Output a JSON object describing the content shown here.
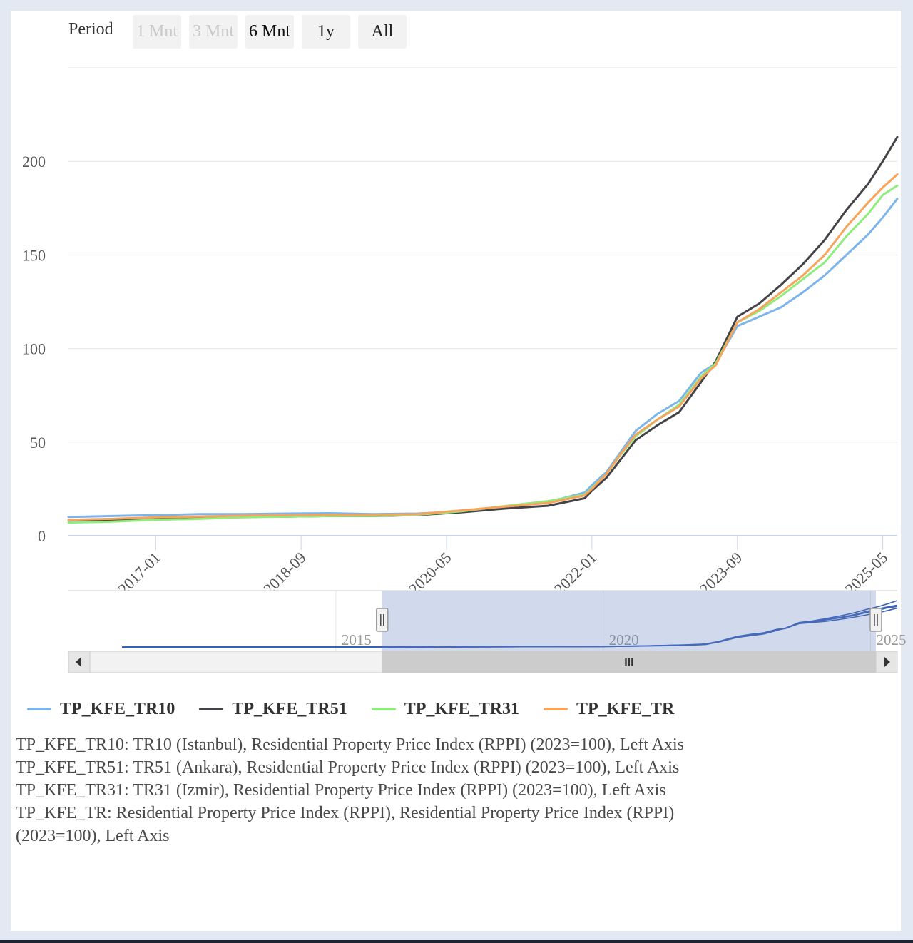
{
  "range_selector": {
    "label": "Period",
    "buttons": [
      {
        "label": "1 Mnt",
        "state": "disabled"
      },
      {
        "label": "3 Mnt",
        "state": "disabled"
      },
      {
        "label": "6 Mnt",
        "state": "selected"
      },
      {
        "label": "1y",
        "state": "normal"
      },
      {
        "label": "All",
        "state": "normal"
      }
    ]
  },
  "chart_data": {
    "type": "line",
    "xlabel": "",
    "ylabel": "",
    "y_ticks": [
      "0",
      "50",
      "100",
      "150",
      "200"
    ],
    "ylim": [
      0,
      250
    ],
    "x_ticks": [
      "2017-01",
      "2018-09",
      "2020-05",
      "2022-01",
      "2023-09",
      "2025-05"
    ],
    "xlim": [
      "2016-01",
      "2025-07"
    ],
    "grid": true,
    "legend_position": "bottom",
    "series": [
      {
        "name": "TP_KFE_TR10",
        "color": "#7cb5ec",
        "points": [
          [
            "2016-01",
            10
          ],
          [
            "2016-07",
            10.5
          ],
          [
            "2017-01",
            11
          ],
          [
            "2017-07",
            11.5
          ],
          [
            "2018-01",
            11.5
          ],
          [
            "2018-07",
            11.8
          ],
          [
            "2019-01",
            12
          ],
          [
            "2019-07",
            11.5
          ],
          [
            "2020-01",
            11.8
          ],
          [
            "2020-07",
            13
          ],
          [
            "2021-01",
            15.5
          ],
          [
            "2021-07",
            18
          ],
          [
            "2021-12",
            23
          ],
          [
            "2022-01",
            27
          ],
          [
            "2022-03",
            34
          ],
          [
            "2022-05",
            45
          ],
          [
            "2022-07",
            56
          ],
          [
            "2022-10",
            65
          ],
          [
            "2023-01",
            72
          ],
          [
            "2023-04",
            87
          ],
          [
            "2023-06",
            92
          ],
          [
            "2023-09",
            112
          ],
          [
            "2023-12",
            117
          ],
          [
            "2024-03",
            122
          ],
          [
            "2024-06",
            130
          ],
          [
            "2024-09",
            139
          ],
          [
            "2024-12",
            150
          ],
          [
            "2025-03",
            161
          ],
          [
            "2025-05",
            170
          ],
          [
            "2025-07",
            180
          ]
        ]
      },
      {
        "name": "TP_KFE_TR51",
        "color": "#434348",
        "points": [
          [
            "2016-01",
            8
          ],
          [
            "2016-07",
            8.5
          ],
          [
            "2017-01",
            9
          ],
          [
            "2017-07",
            9.5
          ],
          [
            "2018-01",
            10
          ],
          [
            "2018-07",
            10.2
          ],
          [
            "2019-01",
            10.5
          ],
          [
            "2019-07",
            10.5
          ],
          [
            "2020-01",
            11
          ],
          [
            "2020-07",
            12.5
          ],
          [
            "2021-01",
            14.5
          ],
          [
            "2021-07",
            16
          ],
          [
            "2021-12",
            20
          ],
          [
            "2022-01",
            24
          ],
          [
            "2022-03",
            31
          ],
          [
            "2022-05",
            41
          ],
          [
            "2022-07",
            51
          ],
          [
            "2022-10",
            59
          ],
          [
            "2023-01",
            66
          ],
          [
            "2023-04",
            82
          ],
          [
            "2023-06",
            93
          ],
          [
            "2023-09",
            117
          ],
          [
            "2023-12",
            124
          ],
          [
            "2024-03",
            134
          ],
          [
            "2024-06",
            145
          ],
          [
            "2024-09",
            158
          ],
          [
            "2024-12",
            174
          ],
          [
            "2025-03",
            188
          ],
          [
            "2025-05",
            200
          ],
          [
            "2025-07",
            213
          ]
        ]
      },
      {
        "name": "TP_KFE_TR31",
        "color": "#90ed7d",
        "points": [
          [
            "2016-01",
            7
          ],
          [
            "2016-07",
            7.5
          ],
          [
            "2017-01",
            8.5
          ],
          [
            "2017-07",
            9
          ],
          [
            "2018-01",
            9.8
          ],
          [
            "2018-07",
            10.2
          ],
          [
            "2019-01",
            10.5
          ],
          [
            "2019-07",
            10.6
          ],
          [
            "2020-01",
            11.2
          ],
          [
            "2020-07",
            13
          ],
          [
            "2021-01",
            15.8
          ],
          [
            "2021-07",
            18.5
          ],
          [
            "2021-12",
            22
          ],
          [
            "2022-01",
            25.5
          ],
          [
            "2022-03",
            33
          ],
          [
            "2022-05",
            43.5
          ],
          [
            "2022-07",
            53
          ],
          [
            "2022-10",
            62
          ],
          [
            "2023-01",
            70
          ],
          [
            "2023-04",
            85
          ],
          [
            "2023-06",
            92
          ],
          [
            "2023-09",
            114
          ],
          [
            "2023-12",
            120
          ],
          [
            "2024-03",
            128
          ],
          [
            "2024-06",
            137
          ],
          [
            "2024-09",
            146
          ],
          [
            "2024-12",
            160
          ],
          [
            "2025-03",
            172
          ],
          [
            "2025-05",
            182
          ],
          [
            "2025-07",
            187
          ]
        ]
      },
      {
        "name": "TP_KFE_TR",
        "color": "#f7a35c",
        "points": [
          [
            "2016-01",
            8.5
          ],
          [
            "2016-07",
            9
          ],
          [
            "2017-01",
            9.8
          ],
          [
            "2017-07",
            10.2
          ],
          [
            "2018-01",
            10.8
          ],
          [
            "2018-07",
            11
          ],
          [
            "2019-01",
            11.2
          ],
          [
            "2019-07",
            11.1
          ],
          [
            "2020-01",
            11.5
          ],
          [
            "2020-07",
            13.5
          ],
          [
            "2021-01",
            15.5
          ],
          [
            "2021-07",
            17.5
          ],
          [
            "2021-12",
            21.5
          ],
          [
            "2022-01",
            25
          ],
          [
            "2022-03",
            33
          ],
          [
            "2022-05",
            44
          ],
          [
            "2022-07",
            54
          ],
          [
            "2022-10",
            62
          ],
          [
            "2023-01",
            69
          ],
          [
            "2023-04",
            84
          ],
          [
            "2023-06",
            91
          ],
          [
            "2023-09",
            114
          ],
          [
            "2023-12",
            121
          ],
          [
            "2024-03",
            130
          ],
          [
            "2024-06",
            139
          ],
          [
            "2024-09",
            150
          ],
          [
            "2024-12",
            165
          ],
          [
            "2025-03",
            178
          ],
          [
            "2025-05",
            186
          ],
          [
            "2025-07",
            193
          ]
        ]
      }
    ],
    "navigator": {
      "x_ticks": [
        "2015",
        "2020",
        "2025"
      ],
      "xlim": [
        "2010-01",
        "2025-07"
      ],
      "selected_range": [
        "2016-01",
        "2025-07"
      ],
      "scrollbar_grip": "III"
    }
  },
  "notes": [
    "TP_KFE_TR10: TR10 (Istanbul), Residential Property Price Index (RPPI) (2023=100), Left Axis",
    "TP_KFE_TR51: TR51 (Ankara), Residential Property Price Index (RPPI) (2023=100), Left Axis",
    "TP_KFE_TR31: TR31 (Izmir), Residential Property Price Index (RPPI) (2023=100), Left Axis",
    "TP_KFE_TR: Residential Property Price Index (RPPI), Residential Property Price Index (RPPI) (2023=100), Left Axis"
  ]
}
